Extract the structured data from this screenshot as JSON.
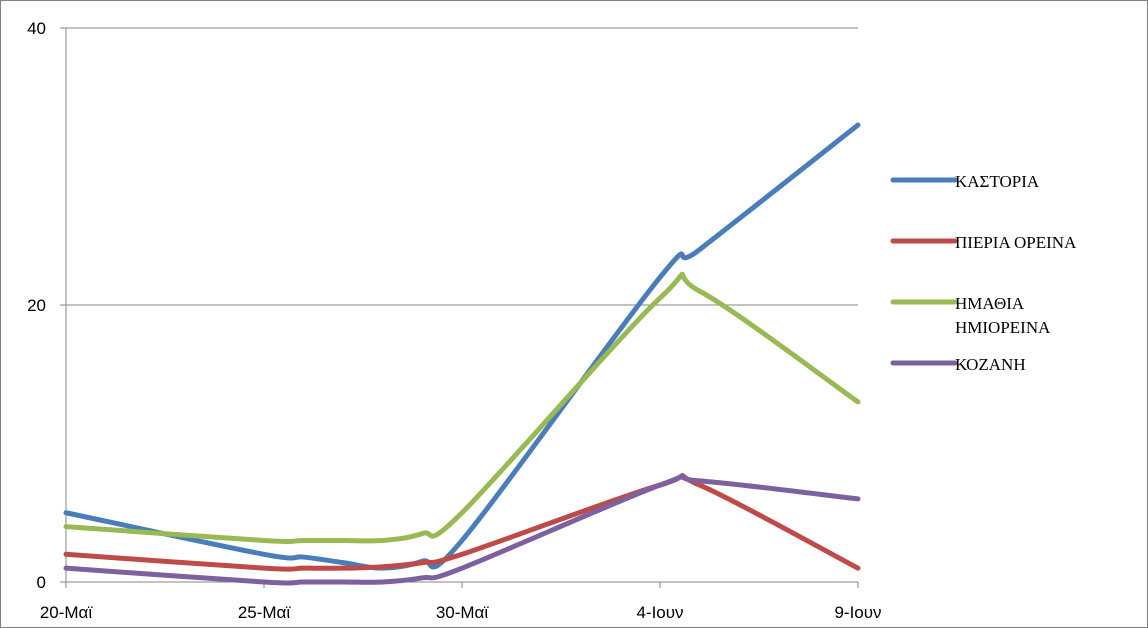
{
  "chart_data": {
    "type": "line",
    "title": "",
    "xlabel": "",
    "ylabel": "",
    "categories": [
      "20-Μαϊ",
      "25-Μαϊ",
      "30-Μαϊ",
      "4-Ιουν",
      "9-Ιουν"
    ],
    "x": [
      "20-Μαϊ",
      "25-Μαϊ",
      "26-Μαϊ",
      "27-Μαϊ",
      "28-Μαϊ",
      "29-Μαϊ",
      "30-Μαϊ",
      "4-Ιουν",
      "5-Ιουν",
      "9-Ιουν"
    ],
    "ylim": [
      0,
      40
    ],
    "yticks": [
      0,
      20,
      40
    ],
    "grid": true,
    "legend_position": "right",
    "series": [
      {
        "name": "ΚΑΣΤΟΡΙΑ",
        "color": "#4A7EBB",
        "values": [
          5,
          2,
          1.8,
          1.4,
          1,
          1.5,
          3,
          22,
          24,
          33
        ]
      },
      {
        "name": "ΠΙΕΡΙΑ ΟΡΕΙΝΑ",
        "color": "#BE4B48",
        "values": [
          2,
          1,
          1,
          1,
          1.1,
          1.4,
          2,
          7,
          7,
          1
        ]
      },
      {
        "name": "ΗΜΑΘΙΑ ΗΜΙΟΡΕΙΝΑ",
        "color": "#98B954",
        "values": [
          4,
          3,
          3,
          3,
          3,
          3.5,
          5,
          20.5,
          21,
          13
        ]
      },
      {
        "name": "ΚΟΖΑΝΗ",
        "color": "#7D60A0",
        "values": [
          1,
          0,
          0,
          0,
          0,
          0.3,
          1,
          7,
          7.3,
          6
        ]
      }
    ]
  }
}
